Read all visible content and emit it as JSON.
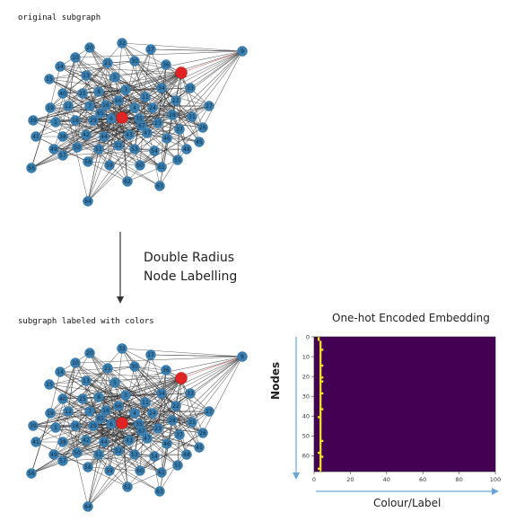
{
  "top_graph": {
    "title": "original subgraph"
  },
  "arrow_caption": {
    "line1": "Double Radius",
    "line2": "Node Labelling"
  },
  "bottom_graph": {
    "title": "subgraph labeled with colors"
  },
  "colors": {
    "node": "#3a7fb0",
    "target_node": "#e02424",
    "edge": "#333333",
    "heatmap_bg": "#440154",
    "heatmap_hot": "#fde725",
    "axis_arrow": "#6aa6d6"
  },
  "chart_data": {
    "type": "heatmap",
    "title": "One-hot Encoded Embedding",
    "xlabel": "Colour/Label",
    "ylabel": "Nodes",
    "xlim": [
      0,
      100
    ],
    "ylim": [
      0,
      68
    ],
    "x_ticks": [
      0,
      20,
      40,
      60,
      80,
      100
    ],
    "y_ticks": [
      0,
      10,
      20,
      30,
      40,
      50,
      60
    ],
    "hot_columns": [
      {
        "column": 3,
        "rows": [
          2,
          3,
          4,
          5,
          6,
          7,
          8,
          9,
          10,
          11,
          12,
          13,
          14,
          15,
          16,
          17,
          18,
          19,
          20,
          21,
          22,
          23,
          24,
          25,
          26,
          27,
          28,
          29,
          30,
          31,
          32,
          33,
          34,
          35,
          36,
          37,
          38,
          39,
          40,
          41,
          42,
          43,
          44,
          45,
          46,
          47,
          48,
          49,
          50,
          51,
          52,
          53,
          54,
          55,
          56,
          57,
          58,
          59,
          60,
          61,
          62,
          63,
          64,
          65,
          66,
          67
        ]
      },
      {
        "column": 4,
        "rows": [
          6,
          14,
          20,
          22,
          28,
          36,
          52,
          60
        ]
      },
      {
        "column": 2,
        "rows": [
          0,
          1,
          40,
          58,
          66
        ]
      }
    ]
  }
}
